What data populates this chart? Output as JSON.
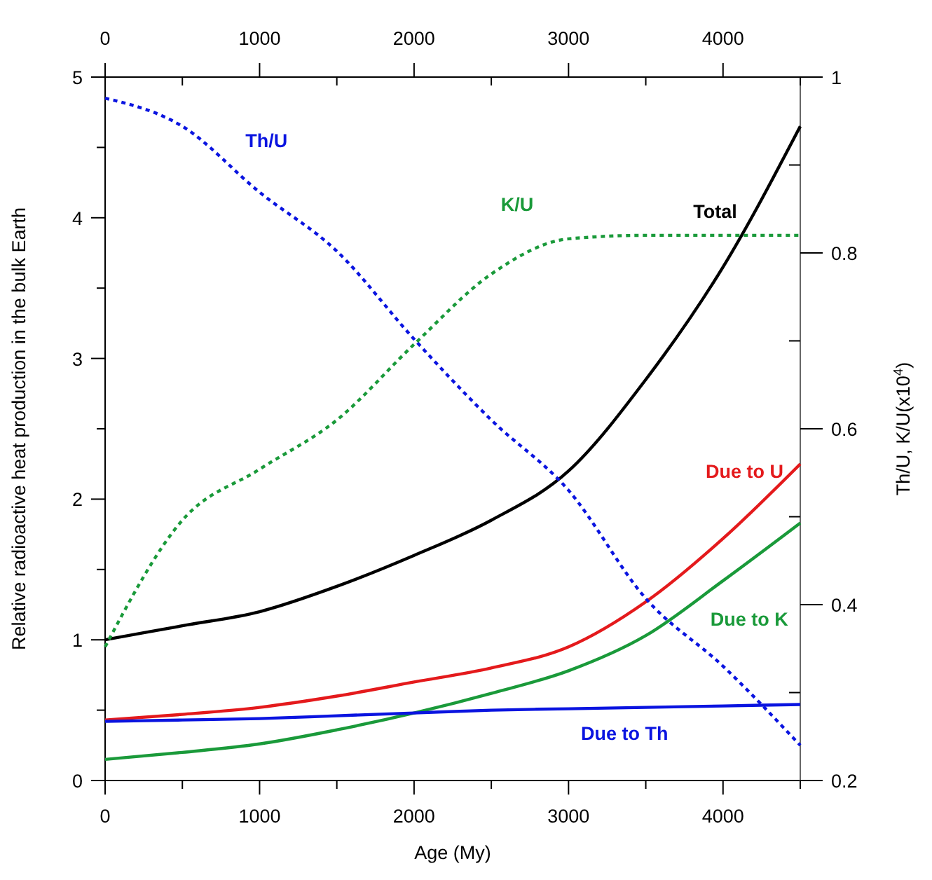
{
  "chart_data": {
    "type": "line",
    "xlabel": "Age (My)",
    "ylabel": "Relative radioactive heat production in the bulk Earth",
    "y2label": "Th/U, K/U(x10$^{4}$)",
    "x": [
      0,
      500,
      1000,
      1500,
      2000,
      2500,
      3000,
      3500,
      4000,
      4500
    ],
    "series": [
      {
        "name": "Total",
        "color": "#000000",
        "values": [
          1.0,
          1.1,
          1.2,
          1.38,
          1.6,
          1.85,
          2.2,
          2.85,
          3.65,
          4.65
        ]
      },
      {
        "name": "Due to U",
        "color": "#e41a1c",
        "values": [
          0.43,
          0.47,
          0.52,
          0.6,
          0.7,
          0.8,
          0.95,
          1.27,
          1.72,
          2.25
        ]
      },
      {
        "name": "Due to K",
        "color": "#1a9a3a",
        "values": [
          0.15,
          0.2,
          0.26,
          0.36,
          0.48,
          0.62,
          0.78,
          1.03,
          1.42,
          1.83
        ]
      },
      {
        "name": "Due to Th",
        "color": "#0a14e0",
        "values": [
          0.42,
          0.43,
          0.44,
          0.46,
          0.48,
          0.5,
          0.51,
          0.52,
          0.53,
          0.54
        ]
      },
      {
        "name": "Th/U",
        "color": "#0a14e0",
        "axis": "y2",
        "line_style": "dotted",
        "values": [
          0.976,
          0.944,
          0.869,
          0.802,
          0.702,
          0.61,
          0.53,
          0.407,
          0.33,
          0.24
        ]
      },
      {
        "name": "K/U",
        "color": "#1a9a3a",
        "axis": "y2",
        "line_style": "dotted",
        "values": [
          0.352,
          0.496,
          0.554,
          0.61,
          0.696,
          0.776,
          0.816,
          0.82,
          0.82,
          0.82
        ]
      }
    ],
    "xlim": [
      0,
      4500
    ],
    "xticks": [
      0,
      {
        "value": 500,
        "label": null
      },
      1000,
      {
        "value": 1500,
        "label": null
      },
      2000,
      {
        "value": 2500,
        "label": null
      },
      3000,
      {
        "value": 3500,
        "label": null
      },
      4000,
      {
        "value": 4500,
        "label": null
      }
    ],
    "x2lim": [
      0,
      4500
    ],
    "x2ticks": [
      0,
      {
        "value": 500,
        "label": null
      },
      1000,
      {
        "value": 1500,
        "label": null
      },
      2000,
      {
        "value": 2500,
        "label": null
      },
      3000,
      {
        "value": 3500,
        "label": null
      },
      4000,
      {
        "value": 4500,
        "label": null
      }
    ],
    "ylim": [
      0,
      5
    ],
    "yticks": [
      0,
      {
        "value": 0.5,
        "label": null
      },
      1,
      {
        "value": 1.5,
        "label": null
      },
      2,
      {
        "value": 2.5,
        "label": null
      },
      3,
      {
        "value": 3.5,
        "label": null
      },
      4,
      {
        "value": 4.5,
        "label": null
      },
      5
    ],
    "y2lim": [
      0.2,
      1
    ],
    "y2ticks": [
      0.2,
      {
        "value": 0.3,
        "label": null
      },
      0.4,
      {
        "value": 0.5,
        "label": null
      },
      0.6,
      {
        "value": 0.7,
        "label": null
      },
      0.8,
      {
        "value": 0.9,
        "label": null
      },
      1
    ],
    "marker": "none",
    "line_style": "solid"
  }
}
